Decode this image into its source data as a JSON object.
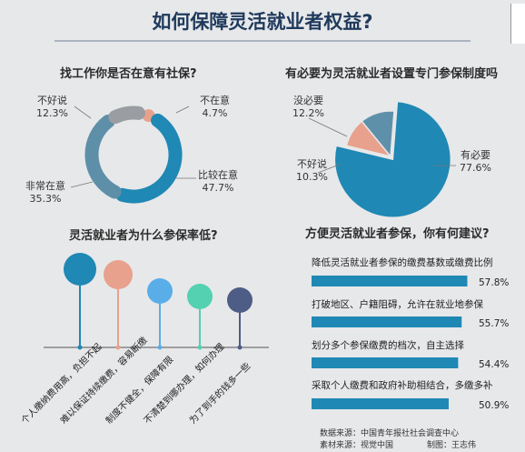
{
  "header": {
    "title": "如何保障灵活就业者权益?"
  },
  "chart_data": [
    {
      "type": "pie",
      "variant": "donut",
      "title": "找工作你是否在意有社保?",
      "categories": [
        "比较在意",
        "非常在意",
        "不好说",
        "不在意"
      ],
      "values": [
        47.7,
        35.3,
        12.3,
        4.7
      ],
      "value_labels": [
        "47.7%",
        "35.3%",
        "12.3%",
        "4.7%"
      ],
      "colors": [
        "#1f88b4",
        "#5e8fa9",
        "#9a9da1",
        "#e8a18c"
      ]
    },
    {
      "type": "pie",
      "title": "有必要为灵活就业者设置专门参保制度吗",
      "categories": [
        "有必要",
        "不好说",
        "没必要"
      ],
      "values": [
        77.6,
        10.3,
        12.2
      ],
      "value_labels": [
        "77.6%",
        "10.3%",
        "12.2%"
      ],
      "colors": [
        "#1f88b4",
        "#e8a18c",
        "#5f90a9"
      ]
    },
    {
      "type": "bar",
      "variant": "lollipop",
      "title": "灵活就业者为什么参保率低?",
      "categories": [
        "个人缴纳费用高，负担不起",
        "难以保证持续缴费，容易断缴",
        "制度不健全，保障有限",
        "不清楚到哪办理，如何办理",
        "为了到手的钱多一些"
      ],
      "colors": [
        "#1f88b4",
        "#e8a18c",
        "#5aaee8",
        "#54d1b0",
        "#4e5d86"
      ]
    },
    {
      "type": "bar",
      "orientation": "horizontal",
      "title": "方便灵活就业者参保，你有何建议?",
      "categories": [
        "降低灵活就业者参保的缴费基数或缴费比例",
        "打破地区、户籍阻碍，允许在就业地参保",
        "划分多个参保缴费的档次，自主选择",
        "采取个人缴费和政府补助相结合，多缴多补"
      ],
      "values": [
        57.8,
        55.7,
        54.4,
        50.9
      ],
      "value_labels": [
        "57.8%",
        "55.7%",
        "54.4%",
        "50.9%"
      ],
      "color": "#1f88b4"
    }
  ],
  "footer": {
    "source_data": "数据来源：中国青年报社社会调查中心",
    "source_material": "素材来源：视觉中国",
    "author": "制图：王志伟"
  }
}
